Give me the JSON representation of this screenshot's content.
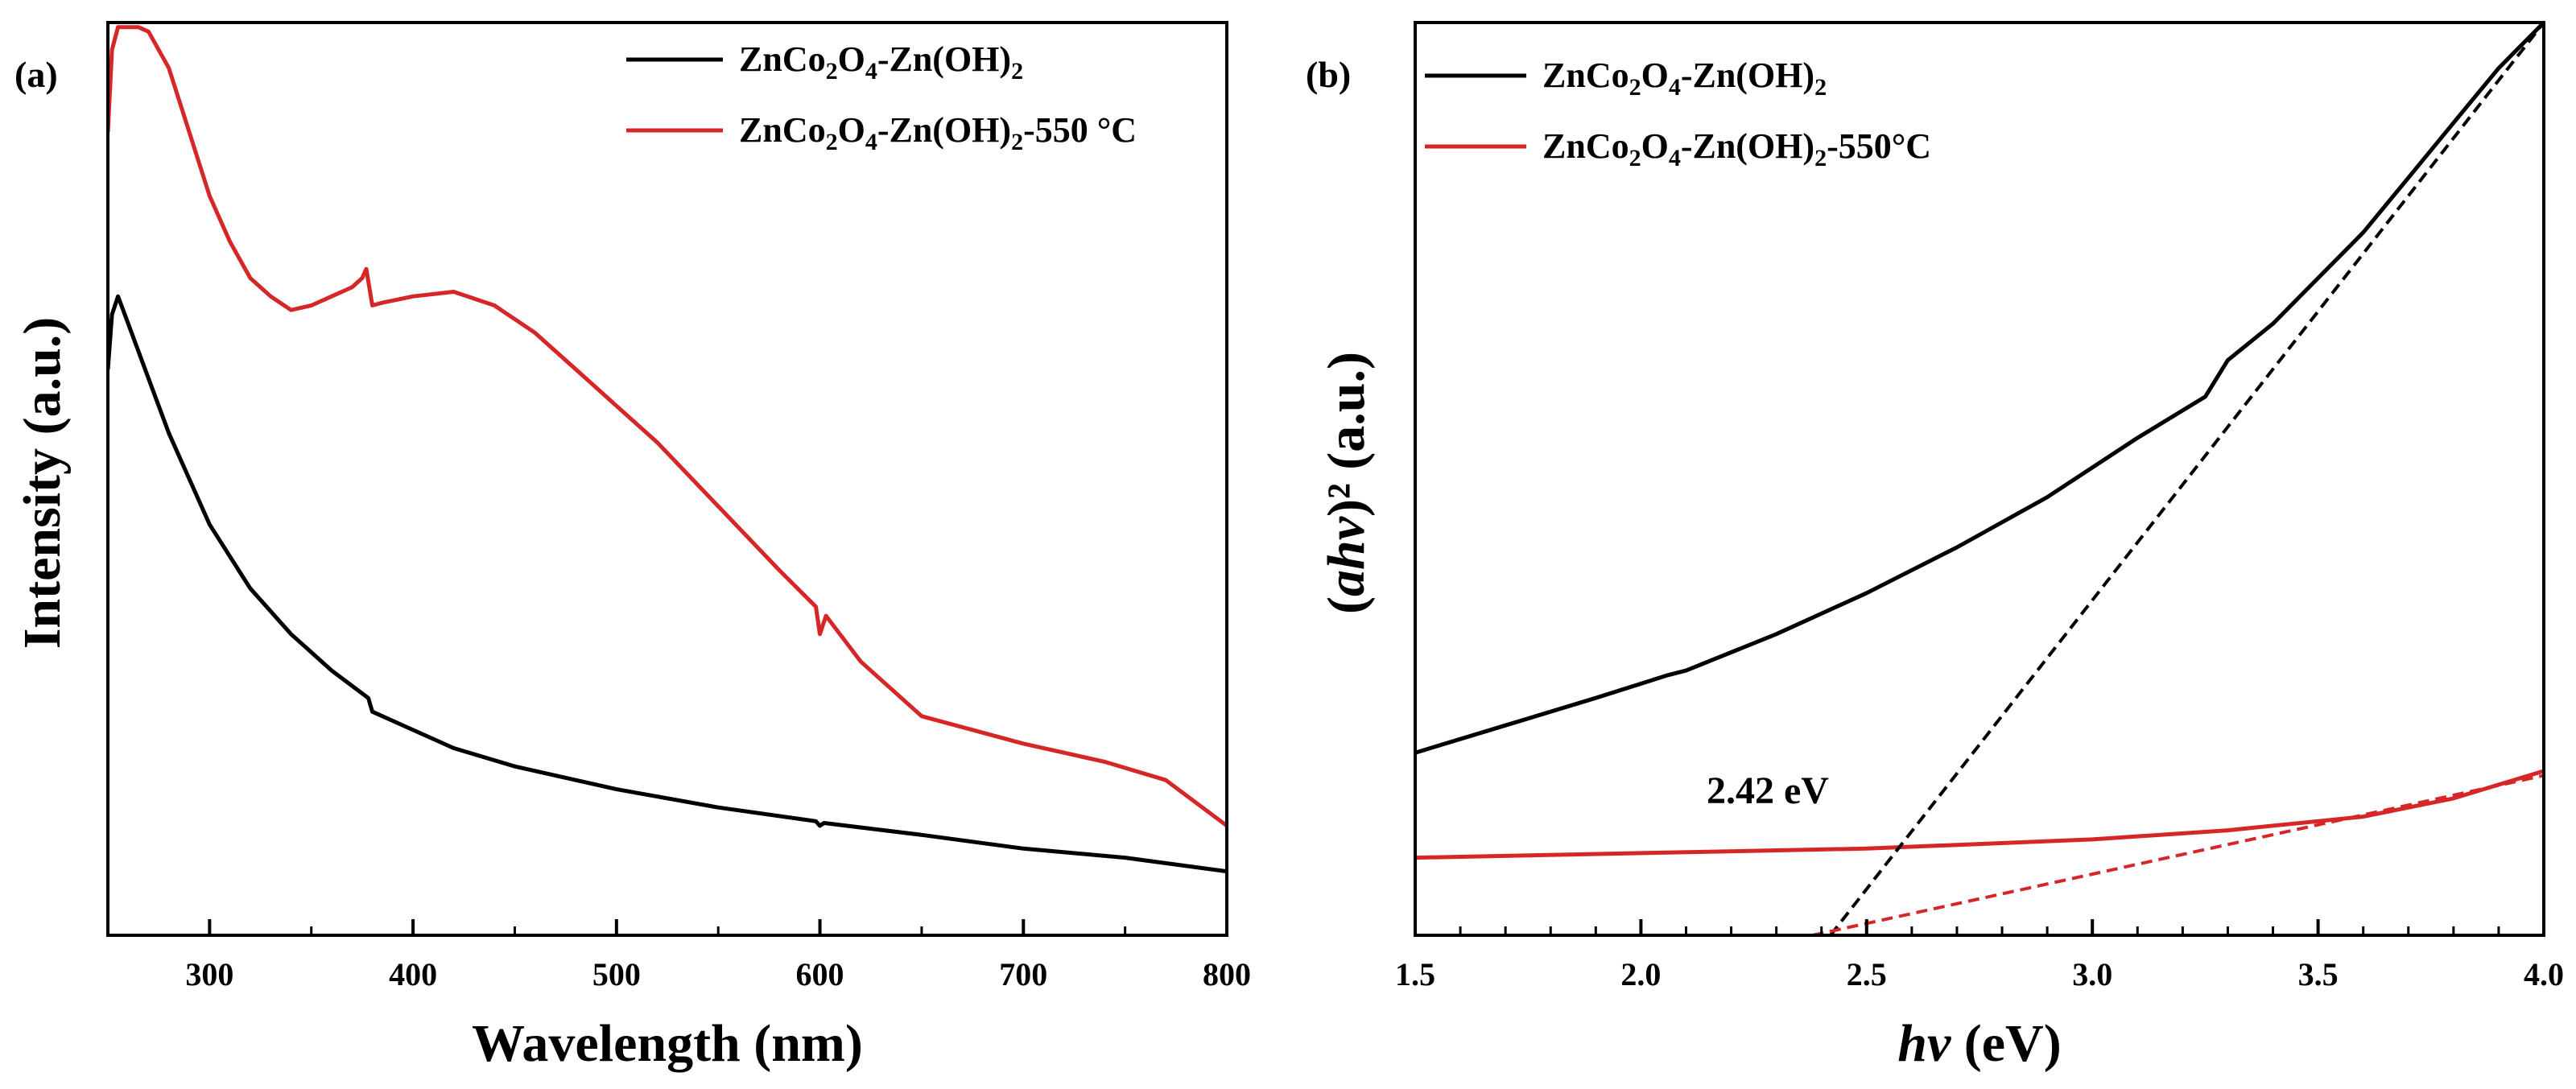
{
  "colors": {
    "black_series": "#000000",
    "red_series": "#d62728",
    "axis": "#000000"
  },
  "chart_data": [
    {
      "type": "line",
      "panel_label": "(a)",
      "xlabel": "Wavelength (nm)",
      "ylabel": "Intensity (a.u.)",
      "xlim": [
        250,
        800
      ],
      "ylim": [
        0,
        1
      ],
      "x_ticks": [
        300,
        400,
        500,
        600,
        700,
        800
      ],
      "y_ticks_labeled": false,
      "legend": {
        "placement": "top-right"
      },
      "series": [
        {
          "name": "ZnCo2O4-Zn(OH)2",
          "name_parts": [
            [
              "ZnCo",
              "n"
            ],
            [
              "2",
              "s"
            ],
            [
              "O",
              "n"
            ],
            [
              "4",
              "s"
            ],
            [
              "-Zn(OH)",
              "n"
            ],
            [
              "2",
              "s"
            ]
          ],
          "color": "#000000",
          "points": [
            [
              250,
              0.62
            ],
            [
              252,
              0.68
            ],
            [
              255,
              0.7
            ],
            [
              260,
              0.67
            ],
            [
              270,
              0.61
            ],
            [
              280,
              0.55
            ],
            [
              290,
              0.5
            ],
            [
              300,
              0.45
            ],
            [
              320,
              0.38
            ],
            [
              340,
              0.33
            ],
            [
              360,
              0.29
            ],
            [
              378,
              0.26
            ],
            [
              380,
              0.245
            ],
            [
              400,
              0.225
            ],
            [
              420,
              0.205
            ],
            [
              450,
              0.185
            ],
            [
              500,
              0.16
            ],
            [
              550,
              0.14
            ],
            [
              598,
              0.125
            ],
            [
              600,
              0.12
            ],
            [
              602,
              0.123
            ],
            [
              650,
              0.11
            ],
            [
              700,
              0.095
            ],
            [
              750,
              0.085
            ],
            [
              800,
              0.07
            ]
          ]
        },
        {
          "name": "ZnCo2O4-Zn(OH)2-550 °C",
          "name_parts": [
            [
              "ZnCo",
              "n"
            ],
            [
              "2",
              "s"
            ],
            [
              "O",
              "n"
            ],
            [
              "4",
              "s"
            ],
            [
              "-Zn(OH)",
              "n"
            ],
            [
              "2",
              "s"
            ],
            [
              "-550 °C",
              "n"
            ]
          ],
          "color": "#d62728",
          "points": [
            [
              250,
              0.88
            ],
            [
              252,
              0.97
            ],
            [
              255,
              0.995
            ],
            [
              265,
              0.995
            ],
            [
              270,
              0.99
            ],
            [
              280,
              0.95
            ],
            [
              290,
              0.88
            ],
            [
              300,
              0.81
            ],
            [
              310,
              0.76
            ],
            [
              320,
              0.72
            ],
            [
              330,
              0.7
            ],
            [
              340,
              0.685
            ],
            [
              350,
              0.69
            ],
            [
              360,
              0.7
            ],
            [
              370,
              0.71
            ],
            [
              375,
              0.72
            ],
            [
              377,
              0.73
            ],
            [
              380,
              0.69
            ],
            [
              385,
              0.693
            ],
            [
              400,
              0.7
            ],
            [
              420,
              0.705
            ],
            [
              440,
              0.69
            ],
            [
              460,
              0.66
            ],
            [
              480,
              0.62
            ],
            [
              500,
              0.58
            ],
            [
              520,
              0.54
            ],
            [
              550,
              0.47
            ],
            [
              580,
              0.4
            ],
            [
              598,
              0.36
            ],
            [
              600,
              0.33
            ],
            [
              603,
              0.35
            ],
            [
              620,
              0.3
            ],
            [
              650,
              0.24
            ],
            [
              700,
              0.21
            ],
            [
              740,
              0.19
            ],
            [
              770,
              0.17
            ],
            [
              800,
              0.12
            ]
          ]
        }
      ]
    },
    {
      "type": "line",
      "panel_label": "(b)",
      "xlabel": "hv (eV)",
      "ylabel": "(ahv)² (a.u.)",
      "xlim": [
        1.5,
        4.0
      ],
      "ylim": [
        0,
        1
      ],
      "x_ticks": [
        1.5,
        2.0,
        2.5,
        3.0,
        3.5,
        4.0
      ],
      "x_tick_labels": [
        "1.5",
        "2.0",
        "2.5",
        "3.0",
        "3.5",
        "4.0"
      ],
      "y_ticks_labeled": false,
      "legend": {
        "placement": "top-left"
      },
      "annotation": {
        "text": "2.42 eV",
        "x": 2.42
      },
      "series": [
        {
          "name": "ZnCo2O4-Zn(OH)2",
          "name_parts": [
            [
              "ZnCo",
              "n"
            ],
            [
              "2",
              "s"
            ],
            [
              "O",
              "n"
            ],
            [
              "4",
              "s"
            ],
            [
              "-Zn(OH)",
              "n"
            ],
            [
              "2",
              "s"
            ]
          ],
          "color": "#000000",
          "points": [
            [
              1.5,
              0.2
            ],
            [
              1.7,
              0.23
            ],
            [
              1.9,
              0.26
            ],
            [
              2.06,
              0.285
            ],
            [
              2.1,
              0.29
            ],
            [
              2.3,
              0.33
            ],
            [
              2.5,
              0.375
            ],
            [
              2.7,
              0.425
            ],
            [
              2.9,
              0.48
            ],
            [
              3.1,
              0.545
            ],
            [
              3.25,
              0.59
            ],
            [
              3.3,
              0.63
            ],
            [
              3.4,
              0.67
            ],
            [
              3.5,
              0.72
            ],
            [
              3.6,
              0.77
            ],
            [
              3.7,
              0.83
            ],
            [
              3.8,
              0.89
            ],
            [
              3.9,
              0.95
            ],
            [
              4.0,
              1.0
            ]
          ]
        },
        {
          "name": "ZnCo2O4-Zn(OH)2-550°C",
          "name_parts": [
            [
              "ZnCo",
              "n"
            ],
            [
              "2",
              "s"
            ],
            [
              "O",
              "n"
            ],
            [
              "4",
              "s"
            ],
            [
              "-Zn(OH)",
              "n"
            ],
            [
              "2",
              "s"
            ],
            [
              "-550°C",
              "n"
            ]
          ],
          "color": "#d62728",
          "points": [
            [
              1.5,
              0.085
            ],
            [
              2.0,
              0.09
            ],
            [
              2.5,
              0.095
            ],
            [
              3.0,
              0.105
            ],
            [
              3.3,
              0.115
            ],
            [
              3.6,
              0.13
            ],
            [
              3.8,
              0.15
            ],
            [
              4.0,
              0.18
            ]
          ]
        }
      ],
      "fit_lines": [
        {
          "name": "black tangent",
          "color": "#000000",
          "points": [
            [
              2.42,
              0.0
            ],
            [
              4.0,
              1.0
            ]
          ]
        },
        {
          "name": "red tangent",
          "color": "#d62728",
          "points": [
            [
              2.38,
              0.0
            ],
            [
              4.0,
              0.175
            ]
          ]
        }
      ]
    }
  ]
}
